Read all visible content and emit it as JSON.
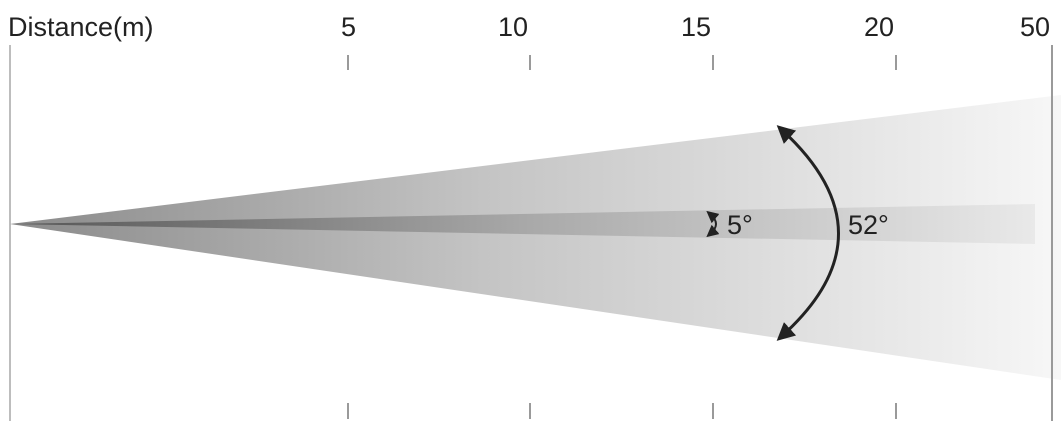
{
  "axis": {
    "title": "Distance(m)",
    "ticks": [
      "5",
      "10",
      "15",
      "20",
      "50"
    ]
  },
  "beams": {
    "narrow_angle": "5°",
    "wide_angle": "52°"
  },
  "colors": {
    "wide_beam_start": "#8a8a8a",
    "wide_beam_end": "#f6f6f6",
    "narrow_beam_start": "#5c5c5c",
    "narrow_beam_end": "#e8e8e8",
    "arrow": "#222222",
    "tick": "#9a9a9a"
  }
}
